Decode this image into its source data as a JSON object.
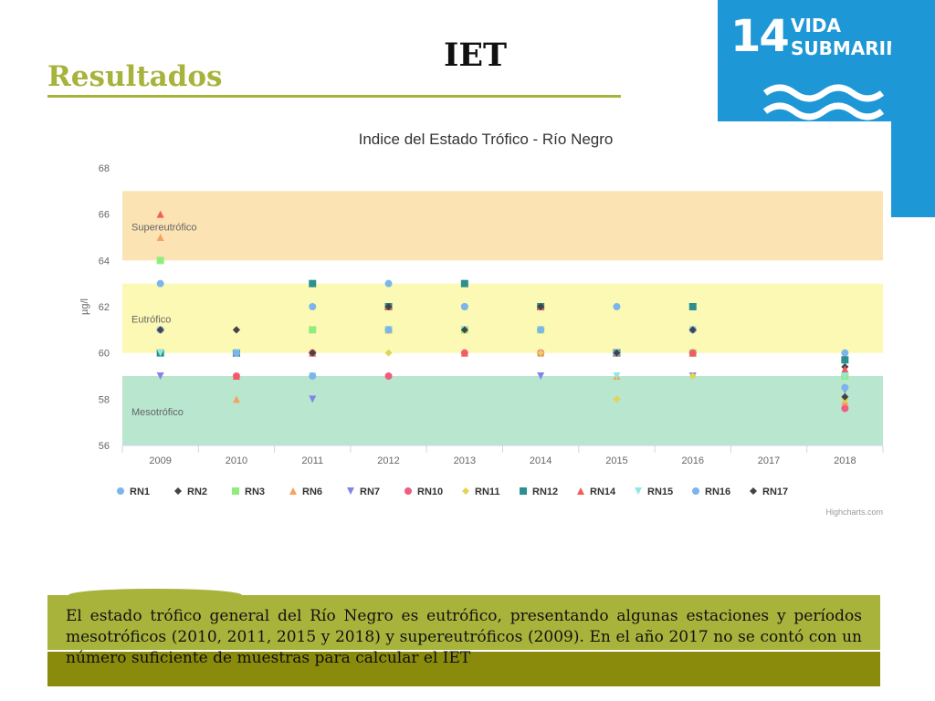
{
  "slide": {
    "heading": "Resultados",
    "title": "IET",
    "caption": "El estado trófico general del Río Negro es eutrófico, presentando algunas estaciones y períodos mesotróficos (2010, 2011, 2015 y 2018) y supereutróficos (2009). En el año 2017 no se contó con un número suficiente de muestras para calcular el IET"
  },
  "badge": {
    "number": "14",
    "line1": "VIDA",
    "line2": "SUBMARINA",
    "icon": "waves-icon",
    "color": "#1e97d6"
  },
  "colors": {
    "accent": "#a8b33c",
    "caption_dark": "#8a8a0c"
  },
  "chart_data": {
    "type": "scatter",
    "title": "Indice del Estado Trófico - Río Negro",
    "ylabel": "µg/l",
    "credit": "Highcharts.com",
    "ylim": [
      56,
      68
    ],
    "yticks": [
      56,
      58,
      60,
      62,
      64,
      66,
      68
    ],
    "legend_position": "bottom",
    "categories": [
      "2009",
      "2010",
      "2011",
      "2012",
      "2013",
      "2014",
      "2015",
      "2016",
      "2017",
      "2018"
    ],
    "bands": [
      {
        "label": "Supereutrófico",
        "from": 64,
        "to": 67,
        "color": "#fbe3b4"
      },
      {
        "label": "Eutrófico",
        "from": 60,
        "to": 63,
        "color": "#fcf9b4"
      },
      {
        "label": "Mesotrófico",
        "from": 56,
        "to": 59,
        "color": "#b8e6cf"
      }
    ],
    "series": [
      {
        "name": "RN1",
        "marker": "circle",
        "color": "#7cb5ec",
        "values": [
          63,
          60,
          62,
          63,
          62,
          61,
          62,
          61,
          null,
          60
        ]
      },
      {
        "name": "RN2",
        "marker": "diamond",
        "color": "#434348",
        "values": [
          61,
          61,
          60,
          62,
          61,
          62,
          60,
          61,
          null,
          59.4
        ]
      },
      {
        "name": "RN3",
        "marker": "square",
        "color": "#90ed7d",
        "values": [
          64,
          60,
          61,
          61,
          61,
          61,
          60,
          60,
          null,
          59
        ]
      },
      {
        "name": "RN6",
        "marker": "triangle",
        "color": "#f7a35c",
        "values": [
          65,
          58,
          60,
          61,
          60,
          60,
          59,
          60,
          null,
          57.9
        ]
      },
      {
        "name": "RN7",
        "marker": "triangle-down",
        "color": "#8085e9",
        "values": [
          59,
          60,
          58,
          61,
          61,
          59,
          60,
          59,
          null,
          58.4
        ]
      },
      {
        "name": "RN10",
        "marker": "circle",
        "color": "#f15c80",
        "values": [
          61,
          59,
          60,
          59,
          60,
          60,
          60,
          60,
          null,
          57.6
        ]
      },
      {
        "name": "RN11",
        "marker": "diamond",
        "color": "#e4d354",
        "values": [
          60,
          60,
          59,
          60,
          61,
          60,
          58,
          59,
          null,
          58
        ]
      },
      {
        "name": "RN12",
        "marker": "square",
        "color": "#2b908f",
        "values": [
          60,
          60,
          63,
          62,
          63,
          62,
          60,
          62,
          null,
          59.7
        ]
      },
      {
        "name": "RN14",
        "marker": "triangle",
        "color": "#f45b5b",
        "values": [
          66,
          59,
          60,
          62,
          60,
          62,
          60,
          60,
          null,
          59.3
        ]
      },
      {
        "name": "RN15",
        "marker": "triangle-down",
        "color": "#91e8e1",
        "values": [
          60,
          60,
          59,
          61,
          61,
          61,
          59,
          61,
          null,
          59
        ]
      },
      {
        "name": "RN16",
        "marker": "circle",
        "color": "#7cb5ec",
        "values": [
          61,
          60,
          59,
          61,
          62,
          61,
          60,
          61,
          null,
          58.5
        ]
      },
      {
        "name": "RN17",
        "marker": "diamond",
        "color": "#434348",
        "values": [
          61,
          61,
          60,
          62,
          61,
          62,
          60,
          61,
          null,
          58.1
        ]
      }
    ]
  }
}
